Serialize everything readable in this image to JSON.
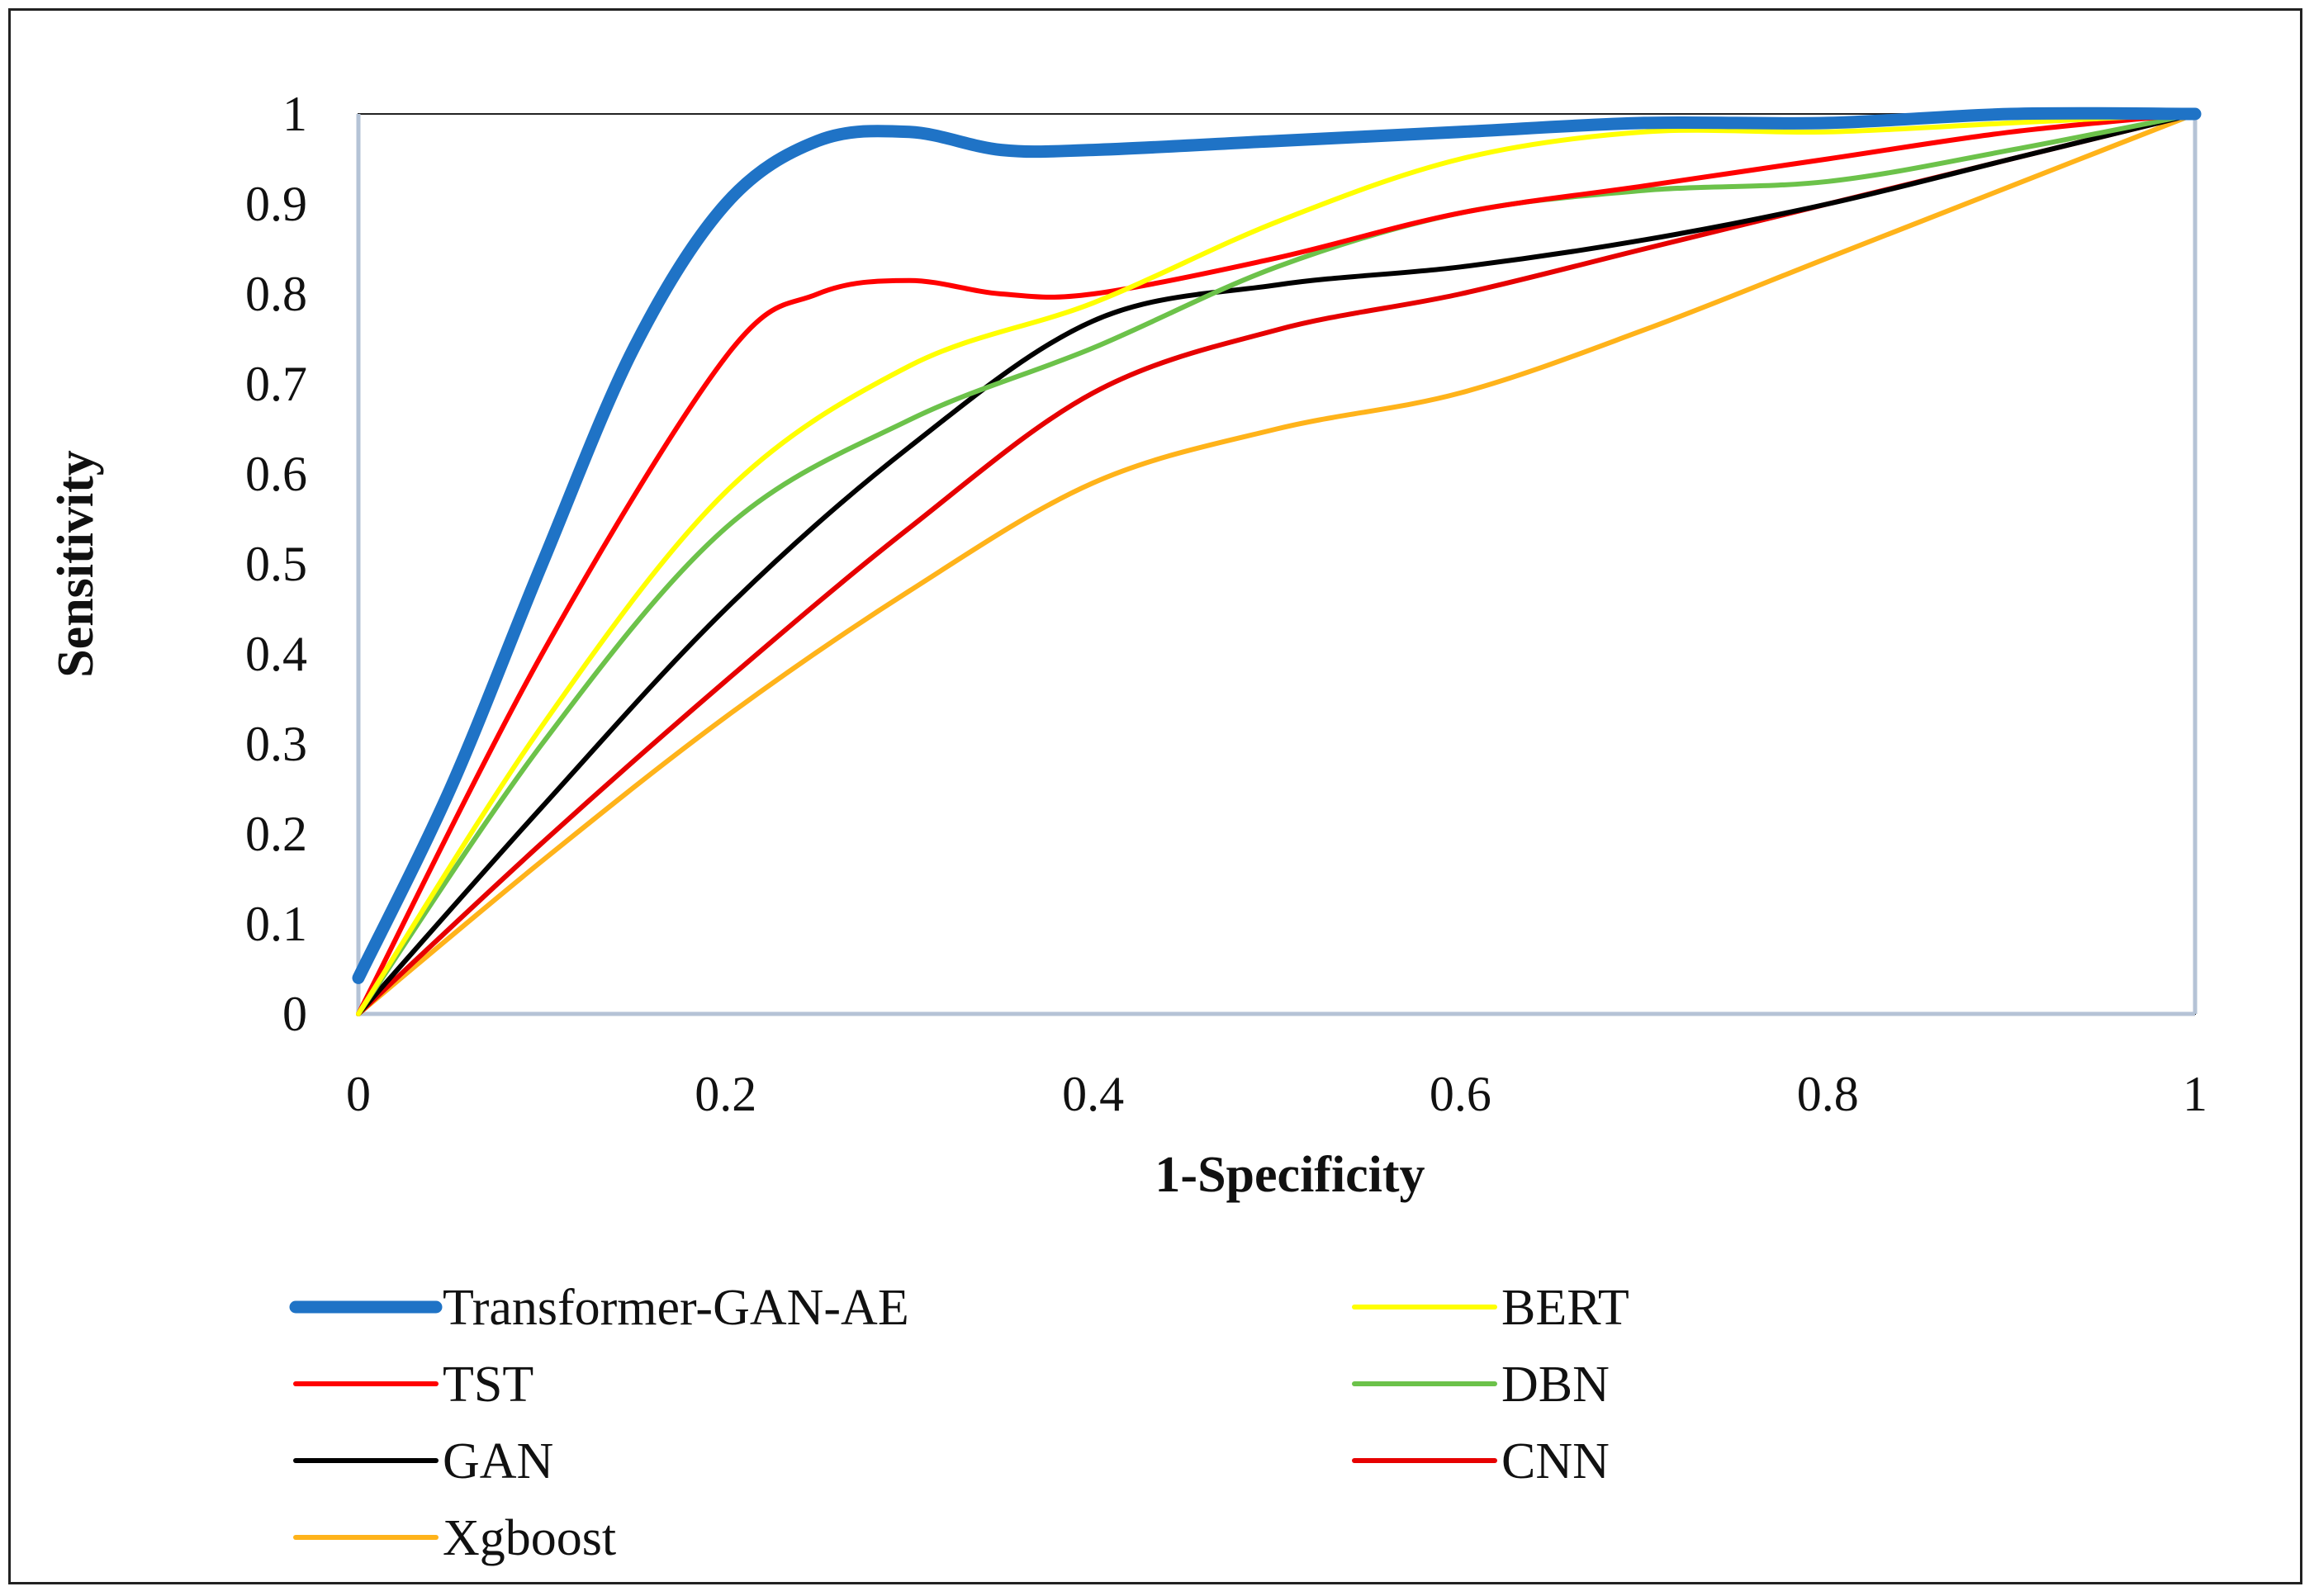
{
  "chart_data": {
    "type": "line",
    "title": "",
    "xlabel": "1-Specificity",
    "ylabel": "Sensitivity",
    "xlim": [
      0,
      1
    ],
    "ylim": [
      0,
      1
    ],
    "x_ticks": [
      "0",
      "0.2",
      "0.4",
      "0.6",
      "0.8",
      "1"
    ],
    "y_ticks": [
      "0",
      "0.1",
      "0.2",
      "0.3",
      "0.4",
      "0.5",
      "0.6",
      "0.7",
      "0.8",
      "0.9",
      "1"
    ],
    "grid": false,
    "legend_position": "bottom",
    "series": [
      {
        "name": "Transformer-GAN-AE",
        "color": "#1f73c6",
        "points": [
          [
            0,
            0.04
          ],
          [
            0.05,
            0.25
          ],
          [
            0.1,
            0.5
          ],
          [
            0.15,
            0.74
          ],
          [
            0.2,
            0.9
          ],
          [
            0.25,
            0.97
          ],
          [
            0.3,
            0.98
          ],
          [
            0.35,
            0.96
          ],
          [
            0.4,
            0.96
          ],
          [
            0.5,
            0.97
          ],
          [
            0.6,
            0.98
          ],
          [
            0.7,
            0.99
          ],
          [
            0.8,
            0.99
          ],
          [
            0.9,
            1.0
          ],
          [
            1.0,
            1.0
          ]
        ]
      },
      {
        "name": "BERT",
        "color": "#ffff00",
        "points": [
          [
            0,
            0.0
          ],
          [
            0.1,
            0.32
          ],
          [
            0.2,
            0.58
          ],
          [
            0.3,
            0.72
          ],
          [
            0.4,
            0.79
          ],
          [
            0.5,
            0.88
          ],
          [
            0.6,
            0.95
          ],
          [
            0.7,
            0.98
          ],
          [
            0.8,
            0.98
          ],
          [
            0.9,
            0.99
          ],
          [
            1.0,
            1.0
          ]
        ]
      },
      {
        "name": "TST",
        "color": "#ff0000",
        "points": [
          [
            0,
            0.0
          ],
          [
            0.1,
            0.4
          ],
          [
            0.2,
            0.73
          ],
          [
            0.25,
            0.8
          ],
          [
            0.3,
            0.815
          ],
          [
            0.35,
            0.8
          ],
          [
            0.4,
            0.8
          ],
          [
            0.5,
            0.84
          ],
          [
            0.6,
            0.89
          ],
          [
            0.7,
            0.92
          ],
          [
            0.8,
            0.95
          ],
          [
            0.9,
            0.98
          ],
          [
            1.0,
            1.0
          ]
        ]
      },
      {
        "name": "DBN",
        "color": "#6cc24a",
        "points": [
          [
            0,
            0.0
          ],
          [
            0.1,
            0.3
          ],
          [
            0.2,
            0.54
          ],
          [
            0.3,
            0.66
          ],
          [
            0.4,
            0.74
          ],
          [
            0.5,
            0.83
          ],
          [
            0.6,
            0.89
          ],
          [
            0.7,
            0.915
          ],
          [
            0.8,
            0.925
          ],
          [
            0.9,
            0.96
          ],
          [
            1.0,
            1.0
          ]
        ]
      },
      {
        "name": "GAN",
        "color": "#000000",
        "points": [
          [
            0,
            0.0
          ],
          [
            0.1,
            0.23
          ],
          [
            0.2,
            0.45
          ],
          [
            0.3,
            0.63
          ],
          [
            0.4,
            0.77
          ],
          [
            0.5,
            0.81
          ],
          [
            0.6,
            0.83
          ],
          [
            0.7,
            0.86
          ],
          [
            0.8,
            0.9
          ],
          [
            0.9,
            0.95
          ],
          [
            1.0,
            1.0
          ]
        ]
      },
      {
        "name": "CNN",
        "color": "#e60000",
        "points": [
          [
            0,
            0.0
          ],
          [
            0.1,
            0.19
          ],
          [
            0.2,
            0.37
          ],
          [
            0.3,
            0.54
          ],
          [
            0.4,
            0.69
          ],
          [
            0.5,
            0.76
          ],
          [
            0.6,
            0.8
          ],
          [
            0.7,
            0.85
          ],
          [
            0.8,
            0.9
          ],
          [
            0.9,
            0.95
          ],
          [
            1.0,
            1.0
          ]
        ]
      },
      {
        "name": "Xgboost",
        "color": "#ffb31a",
        "points": [
          [
            0,
            0.0
          ],
          [
            0.1,
            0.17
          ],
          [
            0.2,
            0.33
          ],
          [
            0.3,
            0.47
          ],
          [
            0.4,
            0.59
          ],
          [
            0.5,
            0.65
          ],
          [
            0.6,
            0.69
          ],
          [
            0.7,
            0.76
          ],
          [
            0.8,
            0.84
          ],
          [
            0.9,
            0.92
          ],
          [
            1.0,
            1.0
          ]
        ]
      }
    ]
  }
}
